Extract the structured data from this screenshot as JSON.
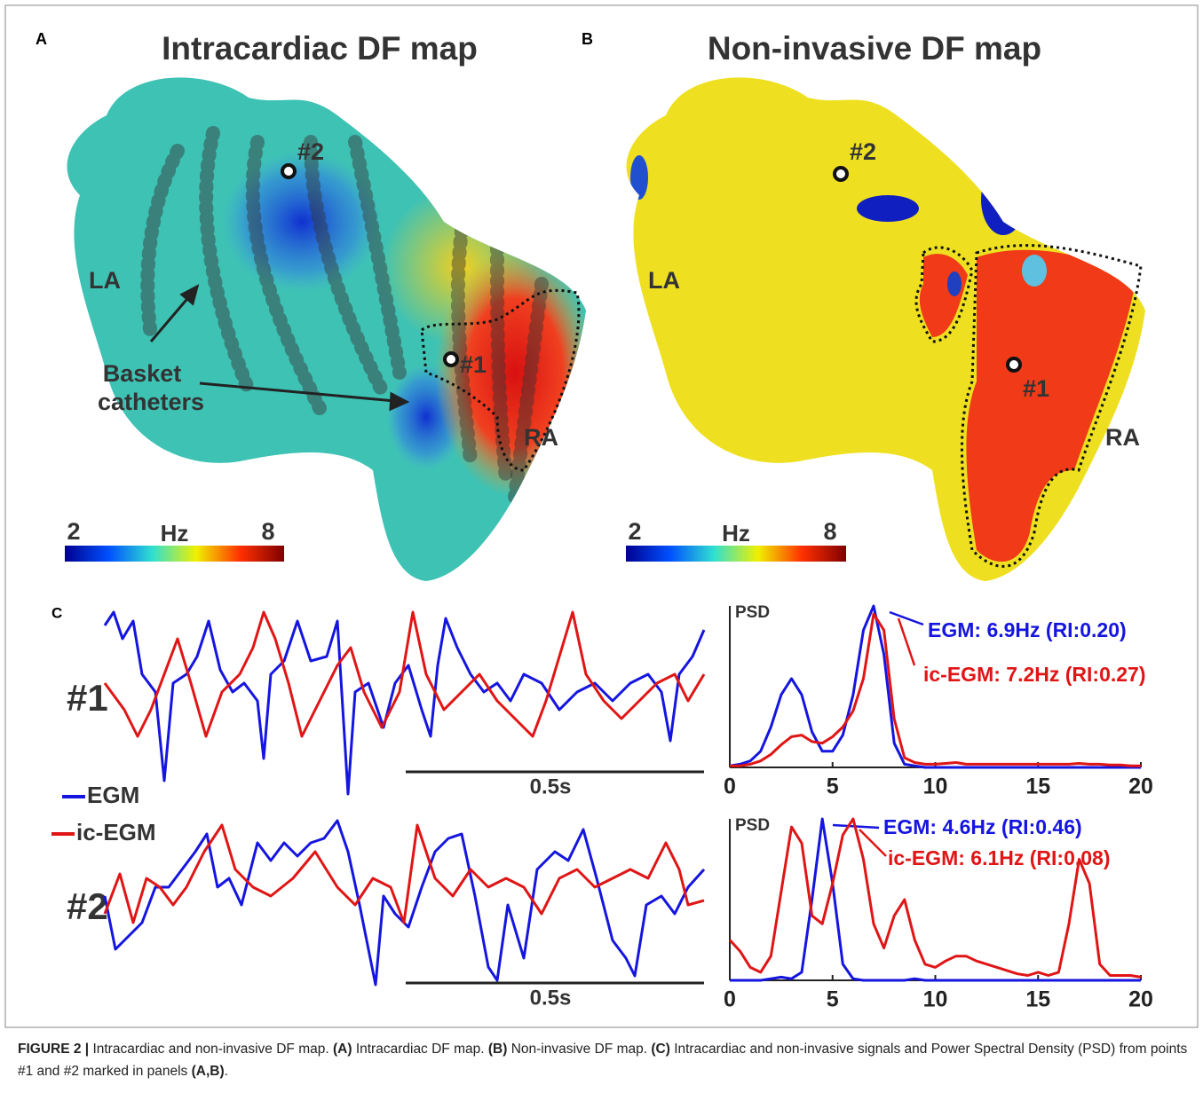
{
  "figure": {
    "panel_a": {
      "letter": "A",
      "title": "Intracardiac DF map",
      "la": "LA",
      "ra": "RA",
      "p1": "#1",
      "p2": "#2",
      "basket": [
        "Basket",
        "catheters"
      ],
      "colorbar": {
        "min": 2,
        "max": 8,
        "unit": "Hz"
      }
    },
    "panel_b": {
      "letter": "B",
      "title": "Non-invasive DF map",
      "la": "LA",
      "ra": "RA",
      "p1": "#1",
      "p2": "#2",
      "colorbar": {
        "min": 2,
        "max": 8,
        "unit": "Hz"
      }
    },
    "panel_c": {
      "letter": "C",
      "row1": "#1",
      "row2": "#2",
      "scale1": "0.5s",
      "scale2": "0.5s"
    }
  },
  "chart_data": [
    {
      "type": "line",
      "y_label": "PSD",
      "x": [
        0,
        0.5,
        1,
        1.5,
        2,
        2.5,
        3,
        3.5,
        4,
        4.5,
        5,
        5.5,
        6,
        6.5,
        7,
        7.5,
        8,
        8.5,
        9,
        9.5,
        10,
        10.5,
        11,
        11.5,
        12,
        12.5,
        13,
        13.5,
        14,
        14.5,
        15,
        15.5,
        16,
        16.5,
        17,
        17.5,
        18,
        18.5,
        19,
        19.5,
        20
      ],
      "xlim": [
        0,
        20
      ],
      "xticks": [
        0,
        5,
        10,
        15,
        20
      ],
      "ylim": [
        0,
        1
      ],
      "series": [
        {
          "name": "EGM",
          "color": "#1515e0",
          "values": [
            0.01,
            0.02,
            0.04,
            0.1,
            0.25,
            0.45,
            0.55,
            0.45,
            0.22,
            0.1,
            0.1,
            0.2,
            0.45,
            0.85,
            1.0,
            0.7,
            0.15,
            0.02,
            0.01,
            0,
            0,
            0,
            0,
            0,
            0,
            0,
            0,
            0,
            0,
            0,
            0,
            0,
            0,
            0,
            0,
            0,
            0,
            0,
            0,
            0,
            0
          ]
        },
        {
          "name": "ic-EGM",
          "color": "#e01515",
          "values": [
            0.01,
            0.01,
            0.02,
            0.04,
            0.08,
            0.14,
            0.19,
            0.2,
            0.16,
            0.15,
            0.19,
            0.25,
            0.35,
            0.55,
            0.95,
            0.85,
            0.3,
            0.06,
            0.03,
            0.02,
            0.02,
            0.025,
            0.03,
            0.02,
            0.02,
            0.02,
            0.02,
            0.02,
            0.02,
            0.02,
            0.02,
            0.02,
            0.02,
            0.02,
            0.025,
            0.02,
            0.02,
            0.015,
            0.015,
            0.01,
            0.01
          ]
        }
      ],
      "annotations": [
        {
          "text": "EGM: 6.9Hz (RI:0.20)",
          "color": "#1515e0"
        },
        {
          "text": "ic-EGM: 7.2Hz (RI:0.27)",
          "color": "#e01515"
        }
      ]
    },
    {
      "type": "line",
      "y_label": "PSD",
      "x": [
        0,
        0.5,
        1,
        1.5,
        2,
        2.5,
        3,
        3.5,
        4,
        4.5,
        5,
        5.5,
        6,
        6.5,
        7,
        7.5,
        8,
        8.5,
        9,
        9.5,
        10,
        10.5,
        11,
        11.5,
        12,
        12.5,
        13,
        13.5,
        14,
        14.5,
        15,
        15.5,
        16,
        16.5,
        17,
        17.5,
        18,
        18.5,
        19,
        19.5,
        20
      ],
      "xlim": [
        0,
        20
      ],
      "xticks": [
        0,
        5,
        10,
        15,
        20
      ],
      "ylim": [
        0,
        1
      ],
      "series": [
        {
          "color": "#1515e0",
          "values": [
            0,
            0,
            0,
            0,
            0.01,
            0.02,
            0.01,
            0.05,
            0.5,
            1.0,
            0.6,
            0.1,
            0.01,
            0,
            0,
            0,
            0,
            0,
            0.01,
            0,
            0,
            0,
            0,
            0,
            0,
            0,
            0,
            0,
            0,
            0,
            0,
            0,
            0,
            0,
            0,
            0,
            0,
            0,
            0,
            0,
            0
          ]
        },
        {
          "color": "#e01515",
          "values": [
            0.25,
            0.18,
            0.08,
            0.05,
            0.15,
            0.55,
            0.95,
            0.85,
            0.4,
            0.35,
            0.6,
            0.9,
            1.0,
            0.75,
            0.35,
            0.2,
            0.4,
            0.5,
            0.25,
            0.1,
            0.08,
            0.12,
            0.15,
            0.15,
            0.12,
            0.1,
            0.08,
            0.06,
            0.04,
            0.03,
            0.05,
            0.03,
            0.05,
            0.35,
            0.75,
            0.6,
            0.1,
            0.03,
            0.03,
            0.03,
            0.02
          ]
        }
      ],
      "annotations": [
        {
          "text": "EGM: 4.6Hz (RI:0.46)",
          "color": "#1515e0"
        },
        {
          "text": "ic-EGM: 6.1Hz (RI:0.08)",
          "color": "#e01515"
        }
      ]
    }
  ],
  "caption": {
    "label": "FIGURE 2 |",
    "parts": [
      "Intracardiac and non-invasive DF map.",
      "(A)",
      "Intracardiac DF map.",
      "(B)",
      "Non-invasive DF map.",
      "(C)",
      "Intracardiac and non-invasive signals and Power Spectral Density (PSD) from points #1 and #2 marked in panels",
      "(A,B)",
      "."
    ]
  }
}
